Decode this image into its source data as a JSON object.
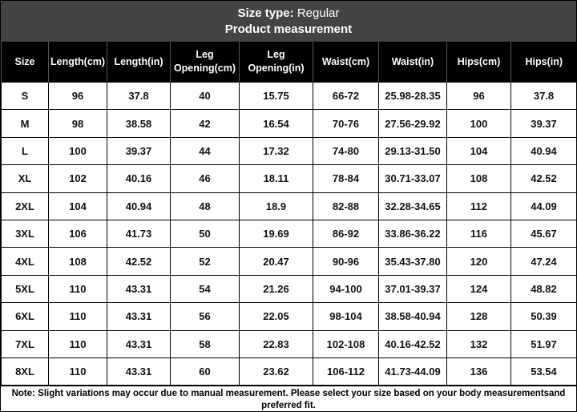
{
  "header": {
    "label": "Size type:",
    "value": "Regular",
    "title": "Product measurement"
  },
  "table": {
    "columns": [
      "Size",
      "Length(cm)",
      "Length(in)",
      "Leg Opening(cm)",
      "Leg Opening(in)",
      "Waist(cm)",
      "Waist(in)",
      "Hips(cm)",
      "Hips(in)"
    ],
    "rows": [
      [
        "S",
        "96",
        "37.8",
        "40",
        "15.75",
        "66-72",
        "25.98-28.35",
        "96",
        "37.8"
      ],
      [
        "M",
        "98",
        "38.58",
        "42",
        "16.54",
        "70-76",
        "27.56-29.92",
        "100",
        "39.37"
      ],
      [
        "L",
        "100",
        "39.37",
        "44",
        "17.32",
        "74-80",
        "29.13-31.50",
        "104",
        "40.94"
      ],
      [
        "XL",
        "102",
        "40.16",
        "46",
        "18.11",
        "78-84",
        "30.71-33.07",
        "108",
        "42.52"
      ],
      [
        "2XL",
        "104",
        "40.94",
        "48",
        "18.9",
        "82-88",
        "32.28-34.65",
        "112",
        "44.09"
      ],
      [
        "3XL",
        "106",
        "41.73",
        "50",
        "19.69",
        "86-92",
        "33.86-36.22",
        "116",
        "45.67"
      ],
      [
        "4XL",
        "108",
        "42.52",
        "52",
        "20.47",
        "90-96",
        "35.43-37.80",
        "120",
        "47.24"
      ],
      [
        "5XL",
        "110",
        "43.31",
        "54",
        "21.26",
        "94-100",
        "37.01-39.37",
        "124",
        "48.82"
      ],
      [
        "6XL",
        "110",
        "43.31",
        "56",
        "22.05",
        "98-104",
        "38.58-40.94",
        "128",
        "50.39"
      ],
      [
        "7XL",
        "110",
        "43.31",
        "58",
        "22.83",
        "102-108",
        "40.16-42.52",
        "132",
        "51.97"
      ],
      [
        "8XL",
        "110",
        "43.31",
        "60",
        "23.62",
        "106-112",
        "41.73-44.09",
        "136",
        "53.54"
      ]
    ]
  },
  "note": "Note: Slight variations may occur due to manual measurement. Please select your size based on your body measurementsand preferred fit."
}
